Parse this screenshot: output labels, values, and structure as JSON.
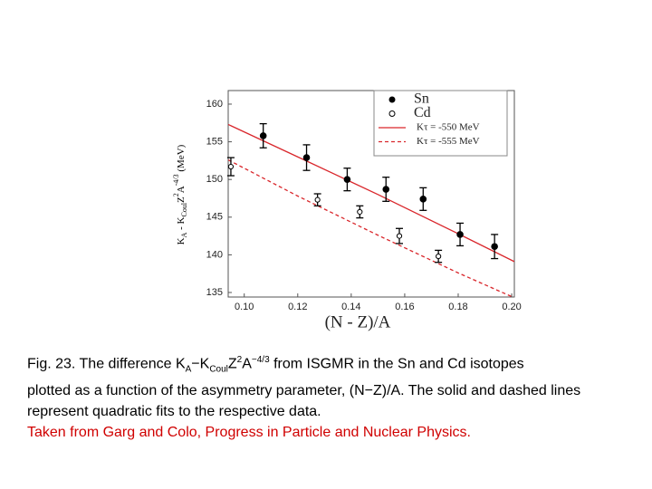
{
  "chart_data": {
    "type": "scatter",
    "ylabel": [
      "K",
      "A",
      " - K",
      "Coul",
      "Z",
      "2",
      "A",
      "-4/3",
      " (MeV)"
    ],
    "xlabel": "(N - Z)/A",
    "xlim": [
      0.094,
      0.201
    ],
    "ylim": [
      134.4,
      161.8
    ],
    "xticks": [
      {
        "value": 0.1,
        "label": "0.10"
      },
      {
        "value": 0.12,
        "label": "0.12"
      },
      {
        "value": 0.14,
        "label": "0.14"
      },
      {
        "value": 0.16,
        "label": "0.16"
      },
      {
        "value": 0.18,
        "label": "0.18"
      },
      {
        "value": 0.2,
        "label": "0.20"
      }
    ],
    "yticks": [
      135,
      140,
      145,
      150,
      155,
      160
    ],
    "series": [
      {
        "name": "Sn",
        "marker": "filled",
        "color": "#000000",
        "x": [
          0.1071,
          0.1233,
          0.1385,
          0.153,
          0.1669,
          0.1807,
          0.1936
        ],
        "values": [
          155.8,
          152.9,
          150.0,
          148.7,
          147.4,
          142.7,
          141.1
        ],
        "errors": [
          1.6,
          1.7,
          1.5,
          1.6,
          1.5,
          1.5,
          1.6
        ]
      },
      {
        "name": "Cd",
        "marker": "open",
        "color": "#000000",
        "x": [
          0.095,
          0.1274,
          0.1432,
          0.158,
          0.1726
        ],
        "values": [
          151.7,
          147.3,
          145.7,
          142.5,
          139.8
        ],
        "errors": [
          1.2,
          0.8,
          0.8,
          1.0,
          0.8
        ]
      },
      {
        "name": "Kτ = -550 MeV",
        "line": "solid",
        "color": "#d9262b",
        "x": [
          0.094,
          0.12,
          0.15,
          0.18,
          0.201
        ],
        "values": [
          157.3,
          153.0,
          148.0,
          142.8,
          139.1
        ]
      },
      {
        "name": "Kτ = -555 MeV",
        "line": "dashed",
        "color": "#d9262b",
        "x": [
          0.094,
          0.12,
          0.15,
          0.18,
          0.201
        ],
        "values": [
          152.6,
          147.8,
          142.6,
          137.6,
          134.3
        ]
      }
    ]
  },
  "caption": {
    "text": [
      "Fig. 23. The difference K",
      "A",
      "−K",
      "Coul",
      "Z",
      "2",
      "A",
      "−4/3",
      " from ISGMR in the Sn and Cd isotopes",
      "plotted as a function of the asymmetry parameter, (N−Z)/A. The solid and dashed lines",
      "represent quadratic fits to the respective data."
    ],
    "source": "Taken from Garg and Colo, Progress in Particle and Nuclear Physics."
  }
}
